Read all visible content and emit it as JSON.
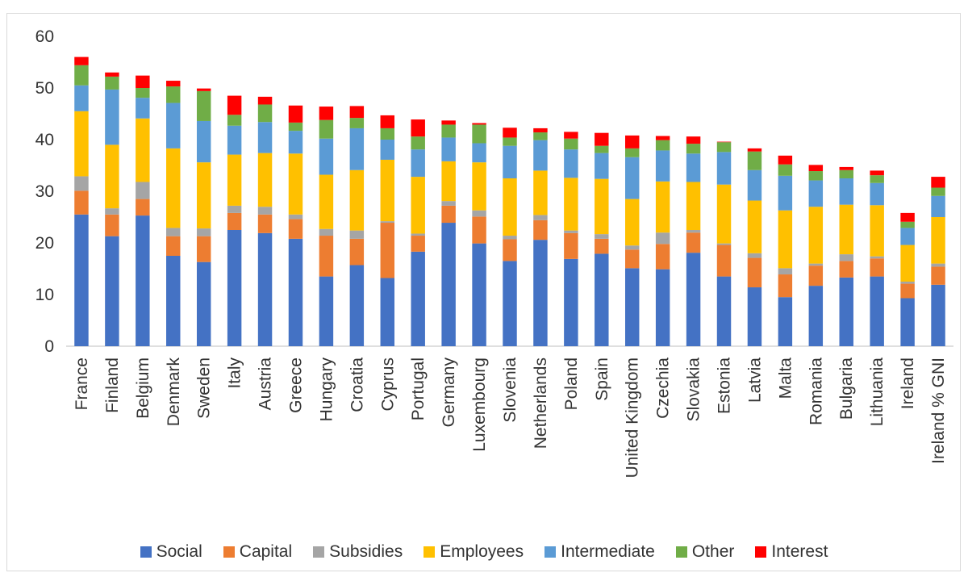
{
  "chart_data": {
    "type": "bar",
    "stacked": true,
    "categories": [
      "France",
      "Finland",
      "Belgium",
      "Denmark",
      "Sweden",
      "Italy",
      "Austria",
      "Greece",
      "Hungary",
      "Croatia",
      "Cyprus",
      "Portugal",
      "Germany",
      "Luxembourg",
      "Slovenia",
      "Netherlands",
      "Poland",
      "Spain",
      "United Kingdom",
      "Czechia",
      "Slovakia",
      "Estonia",
      "Latvia",
      "Malta",
      "Romania",
      "Bulgaria",
      "Lithuania",
      "Ireland",
      "Ireland % GNI"
    ],
    "ylim": [
      0,
      60
    ],
    "yticks": [
      0,
      10,
      20,
      30,
      40,
      50,
      60
    ],
    "grid": false,
    "legend_position": "bottom",
    "series": [
      {
        "name": "Social",
        "color": "#4472c4",
        "values": [
          25.5,
          21.3,
          25.3,
          17.5,
          16.3,
          22.5,
          21.9,
          20.8,
          13.5,
          15.7,
          13.2,
          18.3,
          23.9,
          19.9,
          16.5,
          20.6,
          16.9,
          17.9,
          15.1,
          14.9,
          18.1,
          13.5,
          11.4,
          9.5,
          11.7,
          13.3,
          13.5,
          9.3,
          11.9
        ]
      },
      {
        "name": "Capital",
        "color": "#ed7d31",
        "values": [
          4.6,
          4.2,
          3.2,
          3.8,
          5.0,
          3.3,
          3.6,
          3.8,
          7.9,
          5.1,
          10.7,
          3.1,
          3.3,
          5.2,
          4.2,
          3.8,
          5.0,
          2.9,
          3.6,
          4.9,
          3.9,
          6.1,
          5.7,
          4.4,
          3.9,
          3.2,
          3.5,
          2.8,
          3.5
        ]
      },
      {
        "name": "Subsidies",
        "color": "#a5a5a5",
        "values": [
          2.8,
          1.2,
          3.3,
          1.6,
          1.5,
          1.4,
          1.5,
          0.9,
          1.3,
          1.6,
          0.3,
          0.4,
          0.9,
          1.2,
          0.7,
          1.0,
          0.5,
          0.9,
          0.8,
          2.2,
          0.5,
          0.3,
          0.9,
          1.2,
          0.4,
          1.3,
          0.4,
          0.4,
          0.6
        ]
      },
      {
        "name": "Employees",
        "color": "#ffc000",
        "values": [
          12.6,
          12.3,
          12.3,
          15.4,
          12.8,
          9.9,
          10.4,
          11.8,
          10.5,
          11.7,
          11.9,
          11.0,
          7.7,
          9.3,
          11.1,
          8.6,
          10.2,
          10.7,
          9.0,
          9.9,
          9.3,
          11.4,
          10.2,
          11.2,
          11.0,
          9.6,
          9.9,
          7.1,
          9.0
        ]
      },
      {
        "name": "Intermediate",
        "color": "#5b9bd5",
        "values": [
          5.0,
          10.7,
          4.0,
          8.8,
          8.0,
          5.6,
          6.0,
          4.4,
          7.0,
          8.1,
          3.9,
          5.3,
          4.6,
          3.7,
          6.3,
          5.9,
          5.5,
          5.0,
          8.1,
          6.0,
          5.5,
          6.3,
          5.9,
          6.7,
          5.1,
          5.1,
          4.3,
          3.3,
          4.1
        ]
      },
      {
        "name": "Other",
        "color": "#70ad47",
        "values": [
          3.9,
          2.5,
          1.9,
          3.2,
          5.8,
          2.1,
          3.4,
          1.6,
          3.6,
          2.0,
          2.2,
          2.5,
          2.5,
          3.6,
          1.6,
          1.5,
          2.1,
          1.4,
          1.7,
          2.0,
          1.9,
          1.9,
          3.6,
          2.2,
          1.8,
          1.6,
          1.5,
          1.2,
          1.6
        ]
      },
      {
        "name": "Interest",
        "color": "#ff0000",
        "values": [
          1.6,
          0.8,
          2.4,
          1.1,
          0.5,
          3.7,
          1.5,
          3.3,
          2.6,
          2.3,
          2.5,
          3.3,
          0.8,
          0.3,
          1.9,
          0.8,
          1.3,
          2.5,
          2.5,
          0.8,
          1.4,
          0.1,
          0.6,
          1.7,
          1.2,
          0.6,
          0.9,
          1.7,
          2.1
        ]
      }
    ]
  }
}
